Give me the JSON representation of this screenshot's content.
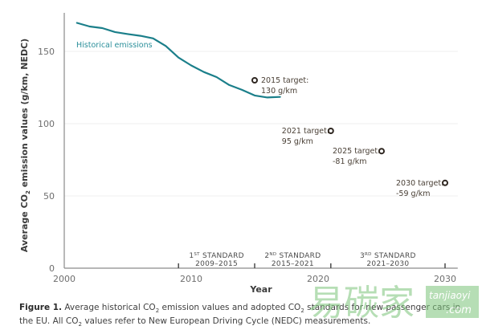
{
  "chart_data": {
    "type": "line",
    "title": "",
    "xlabel": "Year",
    "ylabel": "Average CO2 emission values (g/km, NEDC)",
    "ylabel_parts": {
      "pre": "Average CO",
      "sub": "2",
      "post": " emission values (g/km, NEDC)"
    },
    "xlim": [
      2000,
      2031
    ],
    "ylim": [
      0,
      175
    ],
    "x_ticks": [
      2000,
      2010,
      2020,
      2030
    ],
    "y_ticks": [
      0,
      50,
      100,
      150
    ],
    "grid": "horizontal-light",
    "series": [
      {
        "name": "Historical emissions",
        "color": "#1b7f8a",
        "x": [
          2001,
          2002,
          2003,
          2004,
          2005,
          2006,
          2007,
          2008,
          2009,
          2010,
          2011,
          2012,
          2013,
          2014,
          2015,
          2016,
          2017
        ],
        "values": [
          169.7,
          167.2,
          166.1,
          163.4,
          162.0,
          160.8,
          159.0,
          153.7,
          145.7,
          140.3,
          135.7,
          132.2,
          126.7,
          123.4,
          119.5,
          118.1,
          118.5
        ]
      }
    ],
    "targets": [
      {
        "year": 2015,
        "value": 130,
        "label_line1": "2015 target:",
        "label_line2": "130 g/km",
        "side": "right"
      },
      {
        "year": 2021,
        "value": 95,
        "label_line1": "2021 target:",
        "label_line2": "95 g/km",
        "side": "left"
      },
      {
        "year": 2025,
        "value": 81,
        "label_line1": "2025 target:",
        "label_line2": "-81 g/km",
        "side": "left"
      },
      {
        "year": 2030,
        "value": 59,
        "label_line1": "2030 target:",
        "label_line2": "-59 g/km",
        "side": "left"
      }
    ],
    "standards": [
      {
        "ord": "1",
        "sup": "ST",
        "name": " STANDARD",
        "period": "2009–2015",
        "start": 2009,
        "end": 2015
      },
      {
        "ord": "2",
        "sup": "ND",
        "name": " STANDARD",
        "period": "2015–2021",
        "start": 2015,
        "end": 2021
      },
      {
        "ord": "3",
        "sup": "RD",
        "name": " STANDARD",
        "period": "2021–2030",
        "start": 2021,
        "end": 2030
      }
    ],
    "colors": {
      "line": "#1b7f8a",
      "target_marker": "#2e2620",
      "axis": "#8a8a8a",
      "grid": "#efefef"
    }
  },
  "caption": {
    "label": "Figure 1.",
    "text_1": " Average historical CO",
    "sub_1": "2",
    "text_2": " emission values and adopted CO",
    "sub_2": "2",
    "text_3": " standards for new passenger cars in the EU. All CO",
    "sub_3": "2",
    "text_4": " values refer to New European Driving Cycle (NEDC) measurements."
  },
  "watermark": {
    "cn": "易碳家",
    "latin_1": "tanjiaoyi",
    "latin_2": ".com"
  }
}
